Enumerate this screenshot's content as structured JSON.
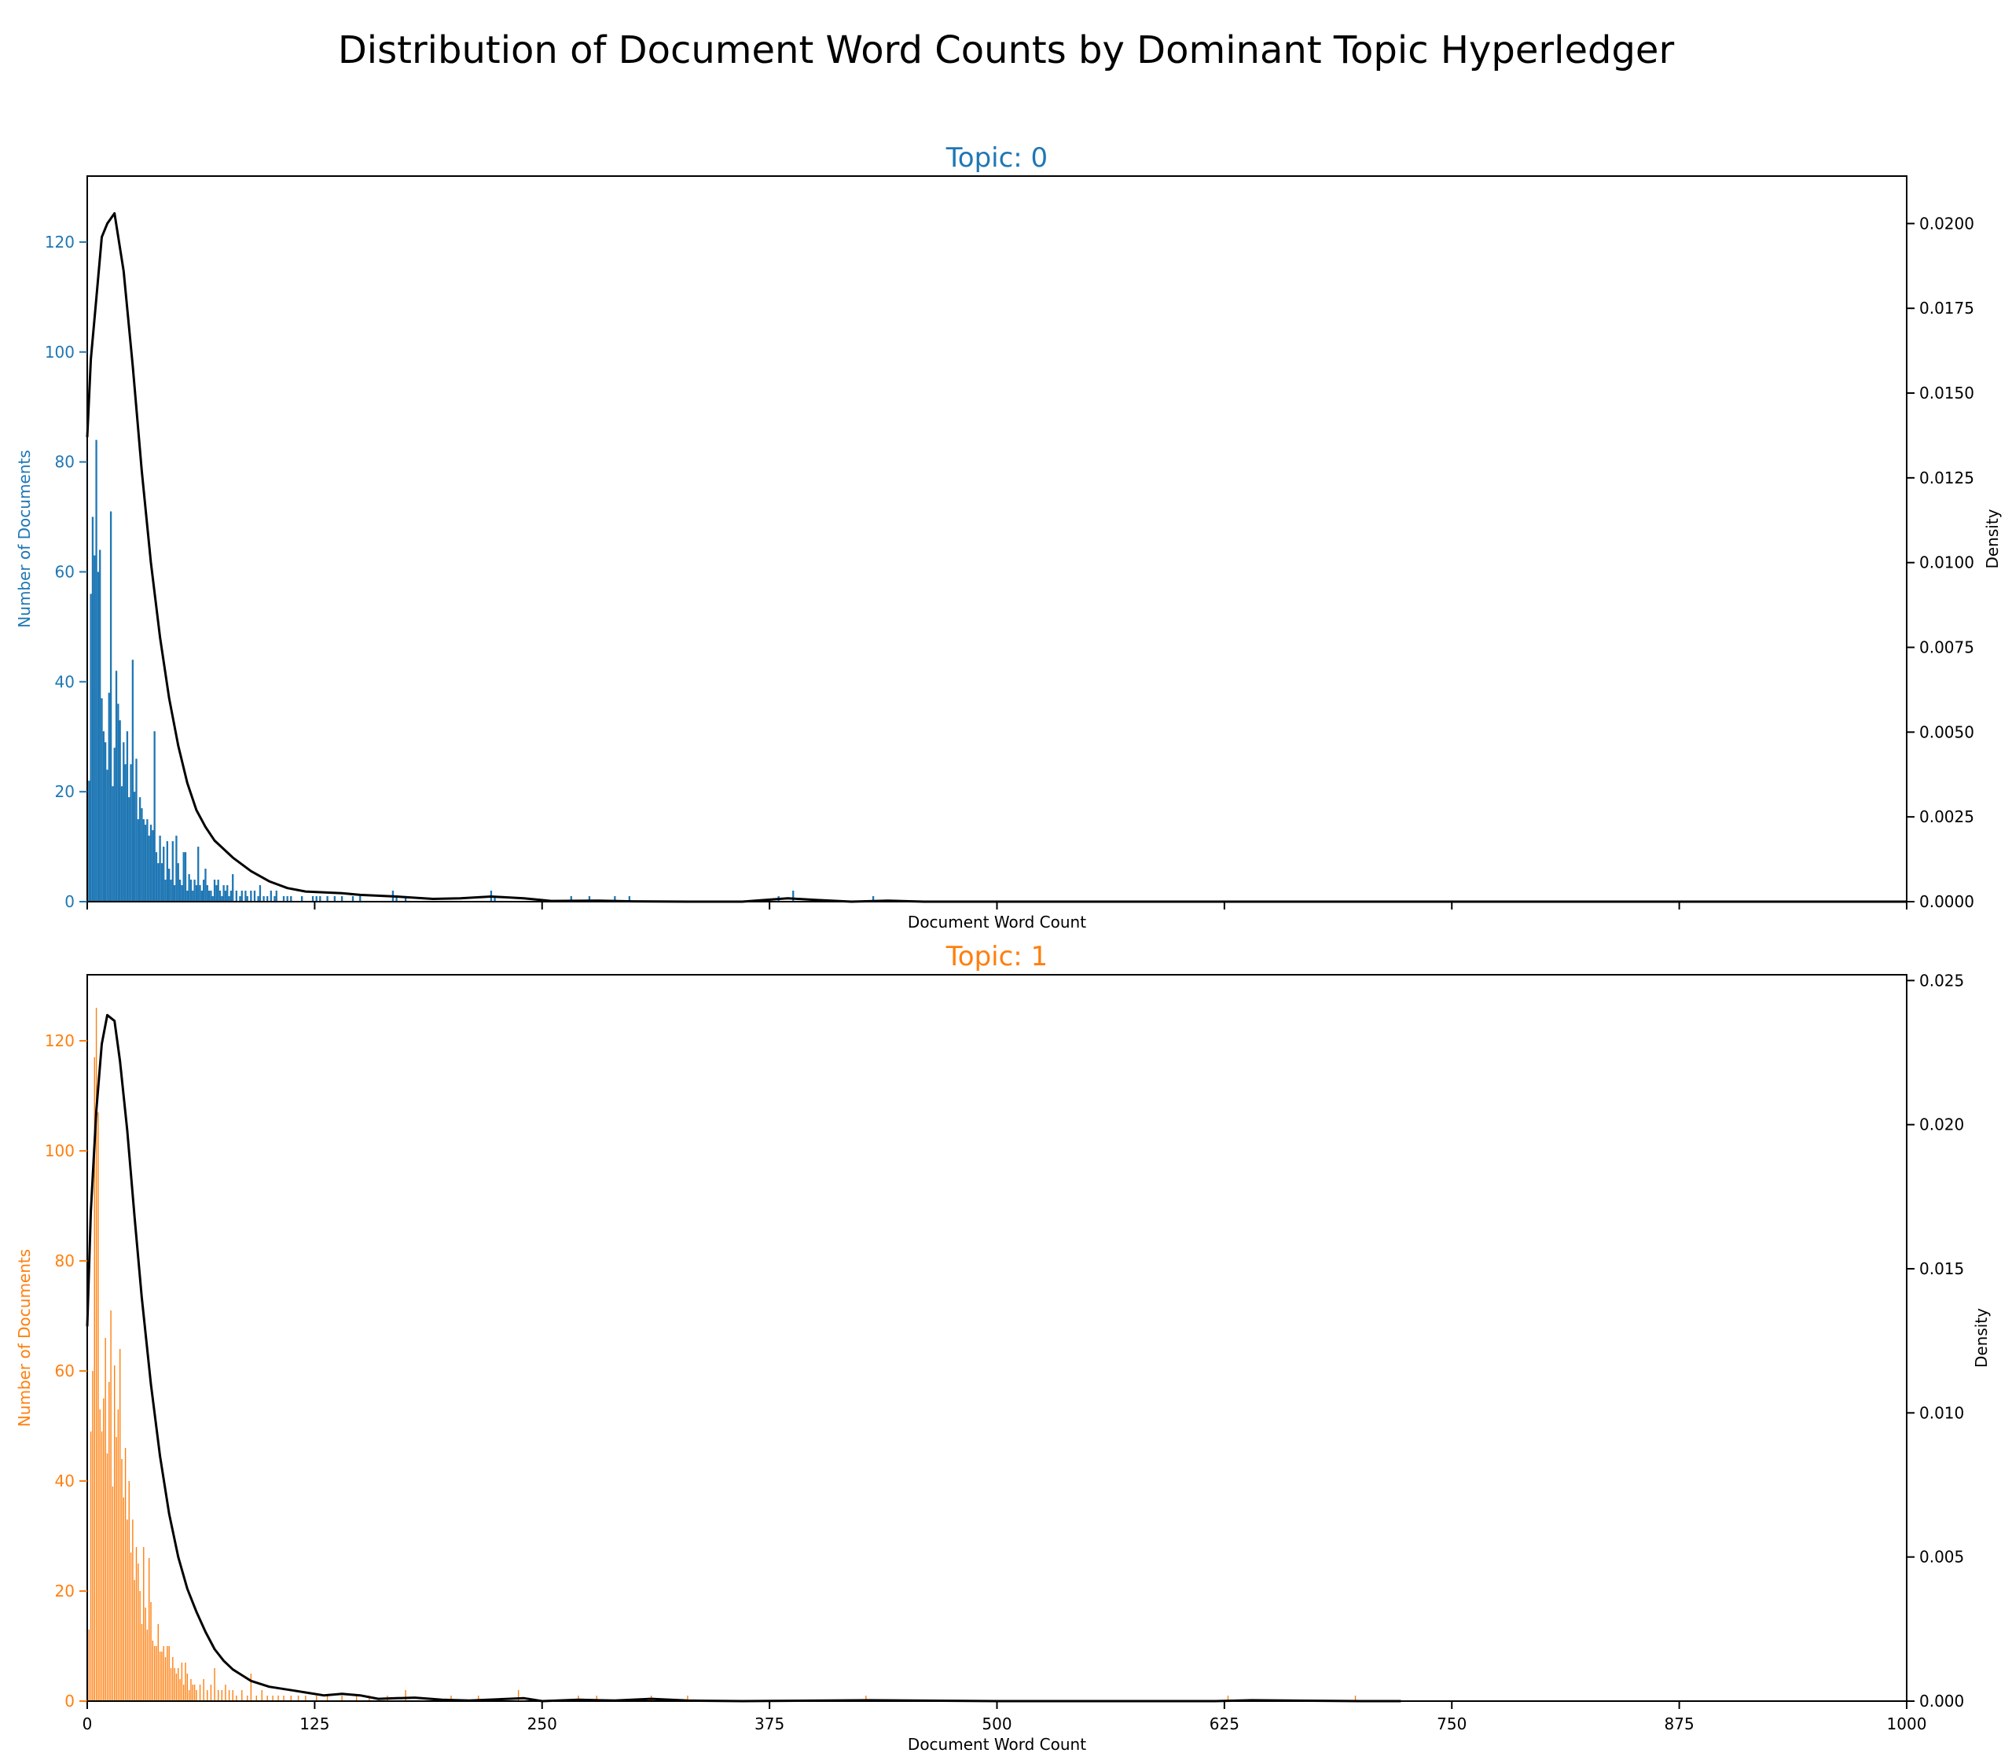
{
  "figure_title": "Distribution of Document Word Counts by Dominant Topic Hyperledger",
  "colors": {
    "topic0": "#1f77b4",
    "topic1": "#ff7f0e",
    "density": "#000000",
    "axes": "#000000"
  },
  "chart_data": [
    {
      "type": "bar",
      "title": "Topic: 0",
      "xlabel": "Document Word Count",
      "ylabel": "Number of Documents",
      "y2label": "Density",
      "xlim": [
        0,
        1000
      ],
      "ylim": [
        0,
        132
      ],
      "y2lim": [
        0,
        0.0214
      ],
      "x_ticks": [
        0,
        125,
        250,
        375,
        500,
        625,
        750,
        875,
        1000
      ],
      "show_x_tick_labels": false,
      "y_ticks": [
        0,
        20,
        40,
        60,
        80,
        100,
        120
      ],
      "y2_ticks": [
        "0.0000",
        "0.0025",
        "0.0050",
        "0.0075",
        "0.0100",
        "0.0125",
        "0.0150",
        "0.0175",
        "0.0200"
      ],
      "bar_width": 1,
      "bars": [
        [
          1,
          22
        ],
        [
          2,
          56
        ],
        [
          3,
          70
        ],
        [
          4,
          63
        ],
        [
          5,
          84
        ],
        [
          6,
          60
        ],
        [
          7,
          64
        ],
        [
          8,
          37
        ],
        [
          9,
          31
        ],
        [
          10,
          29
        ],
        [
          11,
          24
        ],
        [
          12,
          38
        ],
        [
          13,
          71
        ],
        [
          14,
          21
        ],
        [
          15,
          28
        ],
        [
          16,
          42
        ],
        [
          17,
          36
        ],
        [
          18,
          33
        ],
        [
          19,
          21
        ],
        [
          20,
          29
        ],
        [
          21,
          25
        ],
        [
          22,
          31
        ],
        [
          23,
          19
        ],
        [
          24,
          25
        ],
        [
          25,
          44
        ],
        [
          26,
          20
        ],
        [
          27,
          26
        ],
        [
          28,
          15
        ],
        [
          29,
          19
        ],
        [
          30,
          17
        ],
        [
          31,
          15
        ],
        [
          32,
          14
        ],
        [
          33,
          15
        ],
        [
          34,
          12
        ],
        [
          35,
          14
        ],
        [
          36,
          13
        ],
        [
          37,
          31
        ],
        [
          38,
          9
        ],
        [
          39,
          7
        ],
        [
          40,
          12
        ],
        [
          41,
          7
        ],
        [
          42,
          10
        ],
        [
          43,
          4
        ],
        [
          44,
          11
        ],
        [
          45,
          6
        ],
        [
          46,
          4
        ],
        [
          47,
          11
        ],
        [
          48,
          3
        ],
        [
          49,
          12
        ],
        [
          50,
          7
        ],
        [
          51,
          4
        ],
        [
          52,
          3
        ],
        [
          53,
          9
        ],
        [
          54,
          9
        ],
        [
          55,
          2
        ],
        [
          56,
          5
        ],
        [
          57,
          4
        ],
        [
          58,
          2
        ],
        [
          59,
          4
        ],
        [
          60,
          3
        ],
        [
          61,
          10
        ],
        [
          62,
          3
        ],
        [
          63,
          2
        ],
        [
          64,
          4
        ],
        [
          65,
          6
        ],
        [
          66,
          3
        ],
        [
          67,
          2
        ],
        [
          68,
          2
        ],
        [
          69,
          1
        ],
        [
          70,
          4
        ],
        [
          71,
          3
        ],
        [
          72,
          4
        ],
        [
          73,
          2
        ],
        [
          74,
          1
        ],
        [
          75,
          3
        ],
        [
          76,
          2
        ],
        [
          77,
          3
        ],
        [
          78,
          1
        ],
        [
          79,
          2
        ],
        [
          80,
          5
        ],
        [
          82,
          2
        ],
        [
          84,
          1
        ],
        [
          85,
          2
        ],
        [
          87,
          2
        ],
        [
          88,
          1
        ],
        [
          90,
          2
        ],
        [
          92,
          2
        ],
        [
          94,
          1
        ],
        [
          95,
          3
        ],
        [
          97,
          1
        ],
        [
          99,
          1
        ],
        [
          101,
          2
        ],
        [
          103,
          1
        ],
        [
          104,
          2
        ],
        [
          108,
          1
        ],
        [
          110,
          1
        ],
        [
          112,
          1
        ],
        [
          118,
          1
        ],
        [
          124,
          1
        ],
        [
          126,
          1
        ],
        [
          128,
          1
        ],
        [
          132,
          1
        ],
        [
          136,
          1
        ],
        [
          140,
          1
        ],
        [
          146,
          1
        ],
        [
          150,
          1
        ],
        [
          168,
          2
        ],
        [
          170,
          1
        ],
        [
          175,
          1
        ],
        [
          222,
          2
        ],
        [
          224,
          1
        ],
        [
          266,
          1
        ],
        [
          276,
          1
        ],
        [
          290,
          1
        ],
        [
          298,
          1
        ],
        [
          380,
          1
        ],
        [
          388,
          2
        ],
        [
          432,
          1
        ]
      ],
      "density_curve": [
        [
          0,
          0.0137
        ],
        [
          2,
          0.016
        ],
        [
          5,
          0.0178
        ],
        [
          8,
          0.0196
        ],
        [
          11,
          0.02
        ],
        [
          15,
          0.0203
        ],
        [
          20,
          0.0186
        ],
        [
          25,
          0.0158
        ],
        [
          30,
          0.0127
        ],
        [
          35,
          0.01
        ],
        [
          40,
          0.0078
        ],
        [
          45,
          0.006
        ],
        [
          50,
          0.0046
        ],
        [
          55,
          0.0035
        ],
        [
          60,
          0.0027
        ],
        [
          65,
          0.0022
        ],
        [
          70,
          0.0018
        ],
        [
          80,
          0.0013
        ],
        [
          90,
          0.0009
        ],
        [
          100,
          0.0006
        ],
        [
          110,
          0.0004
        ],
        [
          120,
          0.0003
        ],
        [
          140,
          0.00025
        ],
        [
          150,
          0.0002
        ],
        [
          170,
          0.00015
        ],
        [
          190,
          8e-05
        ],
        [
          205,
          0.0001
        ],
        [
          222,
          0.00015
        ],
        [
          240,
          0.0001
        ],
        [
          255,
          2e-05
        ],
        [
          280,
          3e-05
        ],
        [
          300,
          1e-05
        ],
        [
          330,
          0.0
        ],
        [
          360,
          0.0
        ],
        [
          385,
          0.0001
        ],
        [
          400,
          5e-05
        ],
        [
          420,
          0.0
        ],
        [
          440,
          3e-05
        ],
        [
          460,
          0.0
        ],
        [
          500,
          0.0
        ],
        [
          1000,
          0.0
        ]
      ]
    },
    {
      "type": "bar",
      "title": "Topic: 1",
      "xlabel": "Document Word Count",
      "ylabel": "Number of Documents",
      "y2label": "Density",
      "xlim": [
        0,
        1000
      ],
      "ylim": [
        0,
        132
      ],
      "y2lim": [
        0,
        0.0252
      ],
      "x_ticks": [
        0,
        125,
        250,
        375,
        500,
        625,
        750,
        875,
        1000
      ],
      "x_tick_labels": [
        "0",
        "125",
        "250",
        "375",
        "500",
        "625",
        "750",
        "875",
        "1000"
      ],
      "show_x_tick_labels": true,
      "y_ticks": [
        0,
        20,
        40,
        60,
        80,
        100,
        120
      ],
      "y2_ticks": [
        "0.000",
        "0.005",
        "0.010",
        "0.015",
        "0.020",
        "0.025"
      ],
      "bar_width": 0.6,
      "bars": [
        [
          0,
          5
        ],
        [
          1,
          13
        ],
        [
          2,
          49
        ],
        [
          3,
          60
        ],
        [
          4,
          117
        ],
        [
          5,
          126
        ],
        [
          6,
          107
        ],
        [
          7,
          53
        ],
        [
          8,
          49
        ],
        [
          9,
          55
        ],
        [
          10,
          66
        ],
        [
          11,
          45
        ],
        [
          12,
          58
        ],
        [
          13,
          71
        ],
        [
          14,
          39
        ],
        [
          15,
          61
        ],
        [
          16,
          48
        ],
        [
          17,
          53
        ],
        [
          18,
          64
        ],
        [
          19,
          44
        ],
        [
          20,
          37
        ],
        [
          21,
          46
        ],
        [
          22,
          33
        ],
        [
          23,
          40
        ],
        [
          24,
          27
        ],
        [
          25,
          33
        ],
        [
          26,
          22
        ],
        [
          27,
          28
        ],
        [
          28,
          25
        ],
        [
          29,
          20
        ],
        [
          30,
          14
        ],
        [
          31,
          28
        ],
        [
          32,
          17
        ],
        [
          33,
          13
        ],
        [
          34,
          26
        ],
        [
          35,
          18
        ],
        [
          36,
          11
        ],
        [
          37,
          10
        ],
        [
          38,
          10
        ],
        [
          39,
          14
        ],
        [
          40,
          9
        ],
        [
          41,
          9
        ],
        [
          42,
          10
        ],
        [
          43,
          8
        ],
        [
          44,
          10
        ],
        [
          45,
          10
        ],
        [
          46,
          6
        ],
        [
          47,
          8
        ],
        [
          48,
          6
        ],
        [
          49,
          5
        ],
        [
          50,
          6
        ],
        [
          51,
          4
        ],
        [
          52,
          7
        ],
        [
          53,
          3
        ],
        [
          54,
          7
        ],
        [
          55,
          5
        ],
        [
          56,
          2
        ],
        [
          57,
          4
        ],
        [
          58,
          3
        ],
        [
          59,
          3
        ],
        [
          60,
          2
        ],
        [
          62,
          3
        ],
        [
          64,
          4
        ],
        [
          66,
          2
        ],
        [
          68,
          3
        ],
        [
          70,
          6
        ],
        [
          72,
          2
        ],
        [
          74,
          2
        ],
        [
          76,
          3
        ],
        [
          78,
          2
        ],
        [
          80,
          2
        ],
        [
          82,
          1
        ],
        [
          85,
          2
        ],
        [
          88,
          1
        ],
        [
          90,
          5
        ],
        [
          93,
          1
        ],
        [
          96,
          2
        ],
        [
          99,
          1
        ],
        [
          102,
          1
        ],
        [
          105,
          1
        ],
        [
          108,
          1
        ],
        [
          112,
          1
        ],
        [
          116,
          1
        ],
        [
          120,
          1
        ],
        [
          126,
          1
        ],
        [
          132,
          1
        ],
        [
          140,
          1
        ],
        [
          148,
          1
        ],
        [
          155,
          1
        ],
        [
          165,
          1
        ],
        [
          175,
          2
        ],
        [
          200,
          1
        ],
        [
          215,
          1
        ],
        [
          237,
          2
        ],
        [
          270,
          1
        ],
        [
          280,
          1
        ],
        [
          310,
          1
        ],
        [
          330,
          1
        ],
        [
          428,
          1
        ],
        [
          627,
          1
        ],
        [
          697,
          1
        ]
      ],
      "density_curve": [
        [
          0,
          0.013
        ],
        [
          2,
          0.017
        ],
        [
          5,
          0.0205
        ],
        [
          8,
          0.0228
        ],
        [
          11,
          0.0238
        ],
        [
          15,
          0.0236
        ],
        [
          18,
          0.0222
        ],
        [
          22,
          0.0198
        ],
        [
          26,
          0.0168
        ],
        [
          30,
          0.014
        ],
        [
          35,
          0.011
        ],
        [
          40,
          0.0085
        ],
        [
          45,
          0.0065
        ],
        [
          50,
          0.005
        ],
        [
          55,
          0.0039
        ],
        [
          60,
          0.0031
        ],
        [
          65,
          0.0024
        ],
        [
          70,
          0.0018
        ],
        [
          75,
          0.0014
        ],
        [
          80,
          0.0011
        ],
        [
          85,
          0.0009
        ],
        [
          90,
          0.0007
        ],
        [
          100,
          0.0005
        ],
        [
          110,
          0.0004
        ],
        [
          120,
          0.0003
        ],
        [
          130,
          0.0002
        ],
        [
          140,
          0.00025
        ],
        [
          150,
          0.0002
        ],
        [
          160,
          8e-05
        ],
        [
          170,
          0.0001
        ],
        [
          180,
          0.00012
        ],
        [
          195,
          5e-05
        ],
        [
          210,
          2e-05
        ],
        [
          240,
          0.0001
        ],
        [
          250,
          0.0
        ],
        [
          270,
          5e-05
        ],
        [
          290,
          2e-05
        ],
        [
          310,
          8e-05
        ],
        [
          330,
          2e-05
        ],
        [
          360,
          0.0
        ],
        [
          430,
          3e-05
        ],
        [
          500,
          0.0
        ],
        [
          620,
          0.0
        ],
        [
          640,
          3e-05
        ],
        [
          700,
          0.0
        ],
        [
          722,
          0.0
        ]
      ]
    }
  ]
}
